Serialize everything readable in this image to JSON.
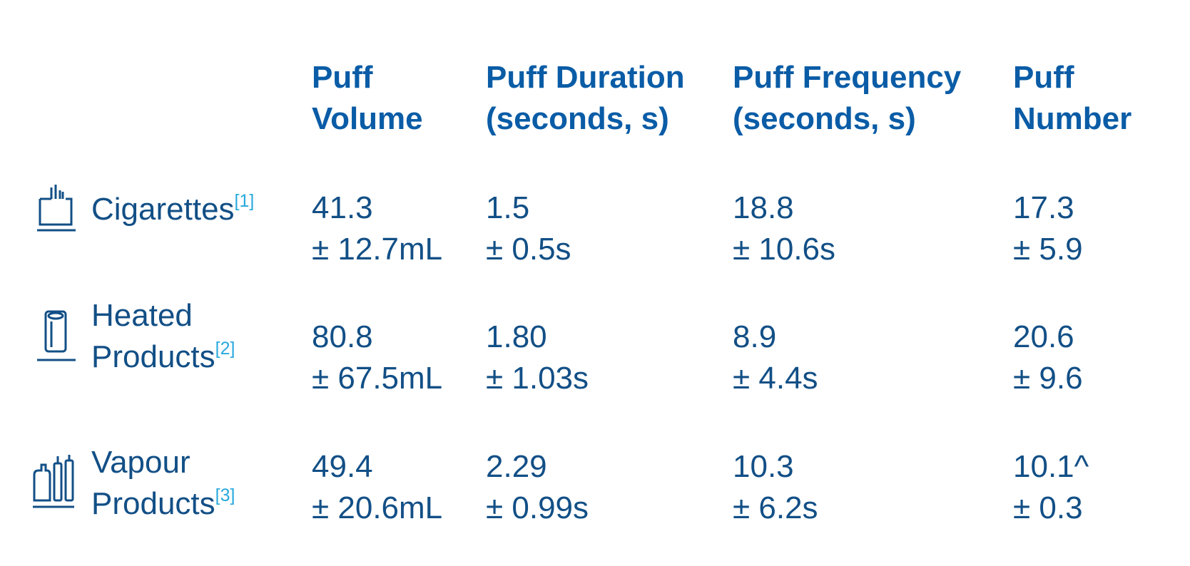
{
  "headers": [
    {
      "line1": "Puff",
      "line2": "Volume"
    },
    {
      "line1": "Puff Duration",
      "line2": "(seconds, s)"
    },
    {
      "line1": "Puff Frequency",
      "line2": "(seconds, s)"
    },
    {
      "line1": "Puff",
      "line2": "Number"
    }
  ],
  "rows": [
    {
      "icon": "cigarette-pack-icon",
      "label_line1": "Cigarettes",
      "label_line2": "",
      "ref": "[1]",
      "cells": [
        {
          "mean": "41.3",
          "sd": "± 12.7mL"
        },
        {
          "mean": "1.5",
          "sd": "± 0.5s"
        },
        {
          "mean": "18.8",
          "sd": "± 10.6s"
        },
        {
          "mean": "17.3",
          "sd": "± 5.9"
        }
      ]
    },
    {
      "icon": "heated-product-device-icon",
      "label_line1": "Heated",
      "label_line2": "Products",
      "ref": "[2]",
      "cells": [
        {
          "mean": "80.8",
          "sd": "± 67.5mL"
        },
        {
          "mean": "1.80",
          "sd": "± 1.03s"
        },
        {
          "mean": "8.9",
          "sd": "± 4.4s"
        },
        {
          "mean": "20.6",
          "sd": "± 9.6"
        }
      ]
    },
    {
      "icon": "vapour-device-icon",
      "label_line1": "Vapour",
      "label_line2": "Products",
      "ref": "[3]",
      "cells": [
        {
          "mean": "49.4",
          "sd": "± 20.6mL"
        },
        {
          "mean": "2.29",
          "sd": "± 0.99s"
        },
        {
          "mean": "10.3",
          "sd": "± 6.2s"
        },
        {
          "mean": "10.1^",
          "sd": "± 0.3"
        }
      ]
    }
  ],
  "colors": {
    "header": "#0a5ca6",
    "text": "#124f86",
    "reference": "#29a9dd"
  }
}
